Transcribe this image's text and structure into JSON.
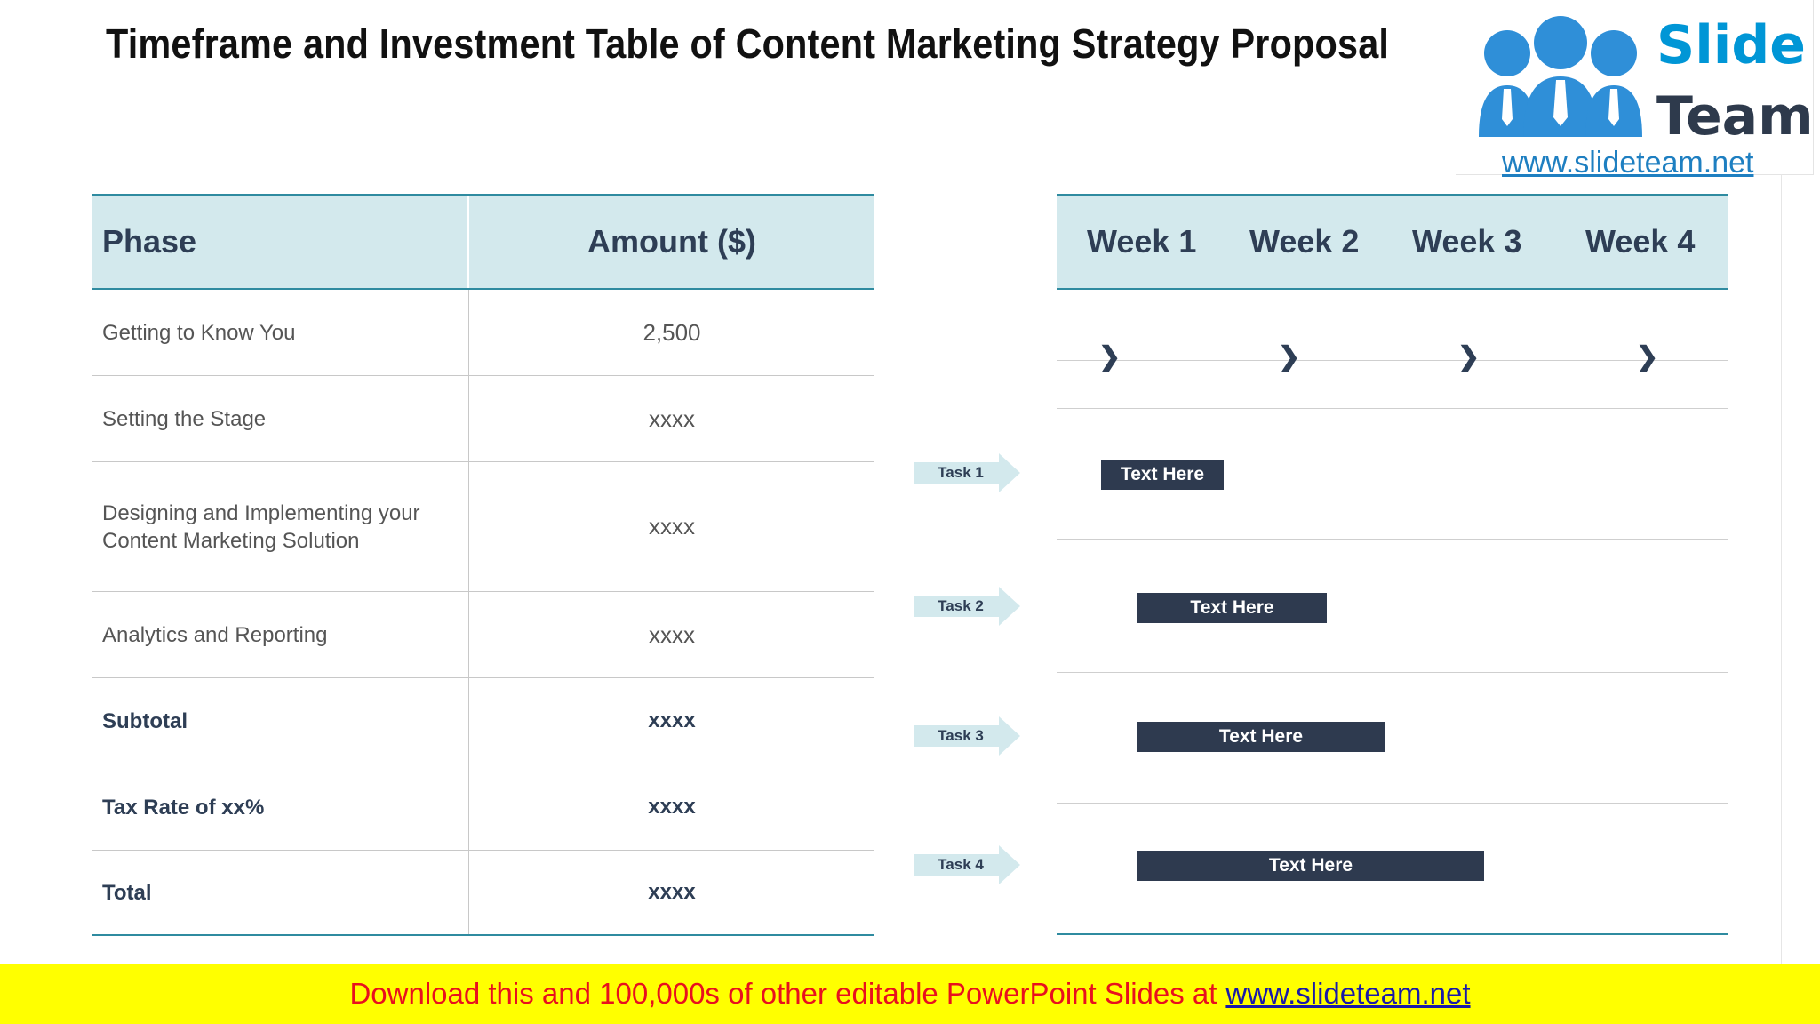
{
  "title": "Timeframe and Investment Table of Content Marketing Strategy Proposal",
  "logo": {
    "word1": "Slide",
    "word2": "Team",
    "url": "www.slideteam.net"
  },
  "table": {
    "headers": {
      "phase": "Phase",
      "amount": "Amount ($)"
    },
    "rows": [
      {
        "phase": "Getting to Know You",
        "amount": "2,500"
      },
      {
        "phase": "Setting the Stage",
        "amount": "xxxx"
      },
      {
        "phase": "Designing and Implementing your Content Marketing Solution",
        "amount": "xxxx"
      },
      {
        "phase": "Analytics and Reporting",
        "amount": "xxxx"
      },
      {
        "phase": "Subtotal",
        "amount": "xxxx"
      },
      {
        "phase": "Tax Rate of xx%",
        "amount": "xxxx"
      },
      {
        "phase": "Total",
        "amount": "xxxx"
      }
    ]
  },
  "gantt": {
    "weeks": [
      "Week 1",
      "Week 2",
      "Week 3",
      "Week 4"
    ],
    "tasks": [
      {
        "label": "Task 1",
        "bar": "Text Here"
      },
      {
        "label": "Task 2",
        "bar": "Text Here"
      },
      {
        "label": "Task 3",
        "bar": "Text Here"
      },
      {
        "label": "Task 4",
        "bar": "Text Here"
      }
    ]
  },
  "footer": {
    "text": "Download this and 100,000s of other editable PowerPoint Slides at",
    "link": "www.slideteam.net"
  },
  "colors": {
    "header_bg": "#d3e9ed",
    "accent_line": "#2f8ba0",
    "bar": "#2e3a4f",
    "footer_bg": "#ffff00",
    "footer_text": "#e8101e"
  }
}
